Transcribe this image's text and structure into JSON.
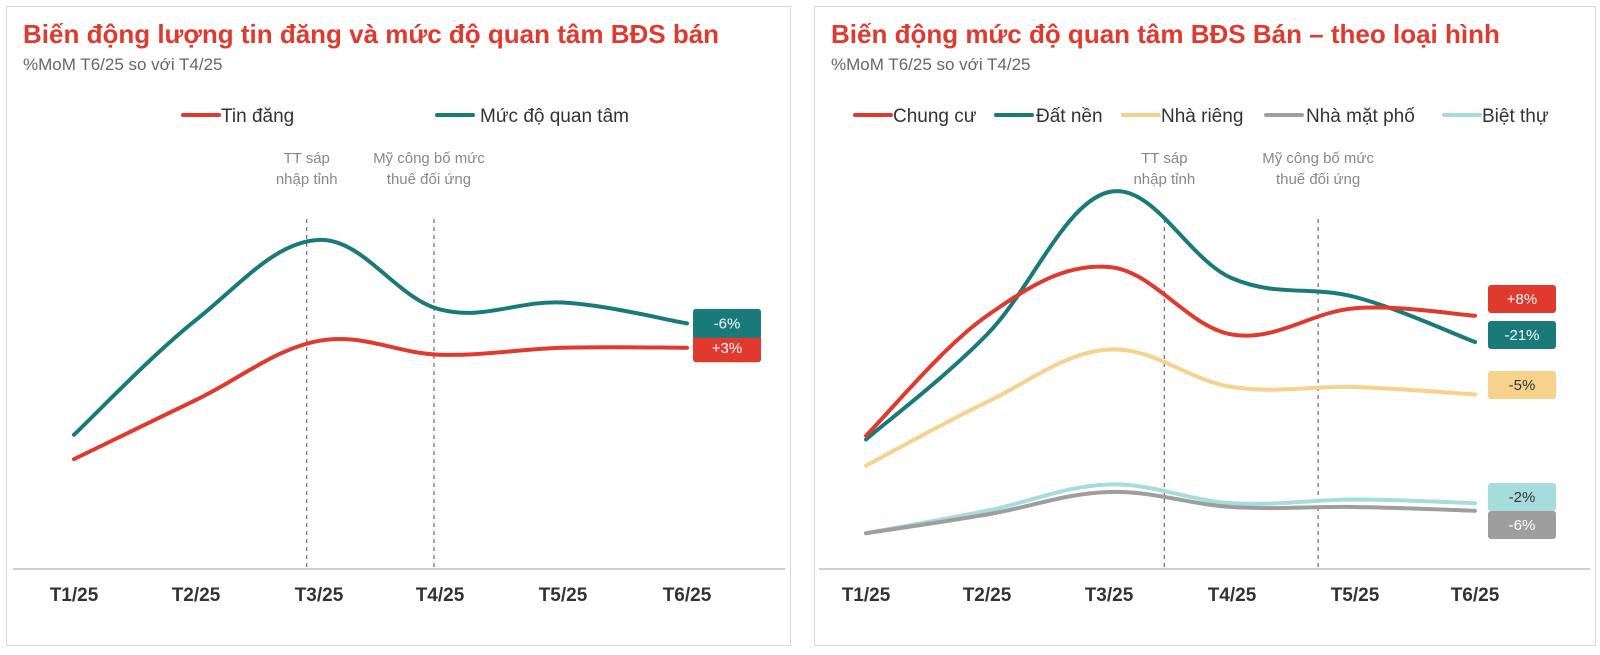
{
  "charts": [
    {
      "title": "Biến động lượng tin đăng và mức độ quan tâm BĐS bán",
      "subtitle": "%MoM T6/25 so với T4/25",
      "annotations": [
        "TT sáp\nnhập tỉnh",
        "Mỹ công bố mức\nthuế đối ứng"
      ]
    },
    {
      "title": "Biến động mức độ quan tâm BĐS Bán – theo loại hình",
      "subtitle": "%MoM T6/25 so với T4/25",
      "annotations": [
        "TT sáp\nnhập tỉnh",
        "Mỹ công bố mức\nthuế đối ứng"
      ]
    }
  ],
  "chart_data": [
    {
      "type": "line",
      "title": "Biến động lượng tin đăng và mức độ quan tâm BĐS bán",
      "subtitle": "%MoM T6/25 so với T4/25",
      "categories": [
        "T1/25",
        "T2/25",
        "T3/25",
        "T4/25",
        "T5/25",
        "T6/25"
      ],
      "ylim": [
        0,
        100
      ],
      "grid": false,
      "legend": "top",
      "series": [
        {
          "name": "Tin đăng",
          "color": "#e03a2f",
          "values": [
            31,
            48,
            65,
            61,
            63,
            63
          ],
          "end_label": "+3%"
        },
        {
          "name": "Mức độ quan tâm",
          "color": "#1a7a7a",
          "values": [
            38,
            71,
            94,
            74,
            76,
            70
          ],
          "end_label": "-6%"
        }
      ],
      "vlines": [
        {
          "pos": 1.9,
          "label": "TT sáp\nnhập tỉnh"
        },
        {
          "pos": 2.95,
          "label": "Mỹ công bố mức\nthuế đối ứng"
        }
      ]
    },
    {
      "type": "line",
      "title": "Biến động mức độ quan tâm BĐS Bán – theo loại hình",
      "subtitle": "%MoM T6/25 so với T4/25",
      "categories": [
        "T1/25",
        "T2/25",
        "T3/25",
        "T4/25",
        "T5/25",
        "T6/25"
      ],
      "ylim": [
        0,
        100
      ],
      "grid": false,
      "legend": "top",
      "series": [
        {
          "name": "Chung cư",
          "color": "#e03a2f",
          "values": [
            35,
            67,
            80,
            62,
            69,
            67
          ],
          "end_label": "+8%"
        },
        {
          "name": "Đất nền",
          "color": "#1a7a7a",
          "values": [
            34,
            62,
            100,
            77,
            72,
            60
          ],
          "end_label": "-21%"
        },
        {
          "name": "Nhà riêng",
          "color": "#f6d28c",
          "values": [
            27,
            44,
            58,
            48,
            48,
            46
          ],
          "end_label": "-5%"
        },
        {
          "name": "Nhà mặt phố",
          "color": "#9e9e9e",
          "values": [
            9,
            14,
            20,
            16,
            16,
            15
          ],
          "end_label": "-6%"
        },
        {
          "name": "Biệt thự",
          "color": "#a6dcdc",
          "values": [
            9,
            15,
            22,
            17,
            18,
            17
          ],
          "end_label": "-2%"
        }
      ],
      "vlines": [
        {
          "pos": 2.45,
          "label": "TT sáp\nnhập tỉnh"
        },
        {
          "pos": 3.7,
          "label": "Mỹ công bố mức\nthuế đối ứng"
        }
      ]
    }
  ]
}
